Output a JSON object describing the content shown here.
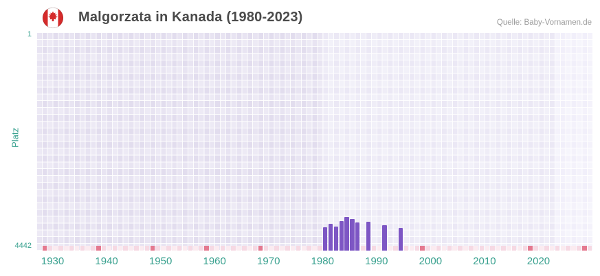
{
  "header": {
    "title": "Malgorzata in Kanada (1980-2023)",
    "source": "Quelle: Baby-Vornamen.de",
    "flag_icon": "canada-flag-icon",
    "flag_colors": {
      "red": "#d52b2b",
      "white": "#ffffff"
    }
  },
  "colors": {
    "axis_text": "#39a18f",
    "title_text": "#4a4a4a",
    "source_text": "#9b9b9b",
    "plot_base": "#e2ddee"
  },
  "chart_data": {
    "type": "bar",
    "title": "Malgorzata in Kanada (1980-2023)",
    "xlabel": "",
    "ylabel": "Platz",
    "y_axis": {
      "top_label": "1",
      "bottom_label": "4442",
      "min": 1,
      "max": 4442,
      "inverted": true
    },
    "x_range": [
      1927,
      2030
    ],
    "x_ticks": [
      1930,
      1940,
      1950,
      1960,
      1970,
      1980,
      1990,
      2000,
      2010,
      2020
    ],
    "grid": true,
    "legend": "none",
    "bar_color": "#7d56c4",
    "bands": [
      {
        "from": 1927,
        "to": 1980,
        "color": "#e2ddee"
      },
      {
        "from": 1980,
        "to": 2023,
        "color": "#ebe8f5"
      },
      {
        "from": 2023,
        "to": 2030,
        "color": "#f1effa"
      }
    ],
    "series": [
      {
        "name": "Platz",
        "points": [
          {
            "year": 1980,
            "rank": 3960
          },
          {
            "year": 1981,
            "rank": 3900
          },
          {
            "year": 1982,
            "rank": 3950
          },
          {
            "year": 1983,
            "rank": 3840
          },
          {
            "year": 1984,
            "rank": 3760
          },
          {
            "year": 1985,
            "rank": 3800
          },
          {
            "year": 1986,
            "rank": 3870
          },
          {
            "year": 1988,
            "rank": 3850
          },
          {
            "year": 1991,
            "rank": 3920
          },
          {
            "year": 1994,
            "rank": 3980
          }
        ]
      }
    ],
    "unranked_strip": {
      "strip_color": "#f6d9e3",
      "strip_alt_color": "#fbebf0",
      "marker_color": "#e4798f",
      "marker_years": [
        1928,
        1938,
        1948,
        1958,
        1968,
        1998,
        2018,
        2028
      ]
    }
  }
}
